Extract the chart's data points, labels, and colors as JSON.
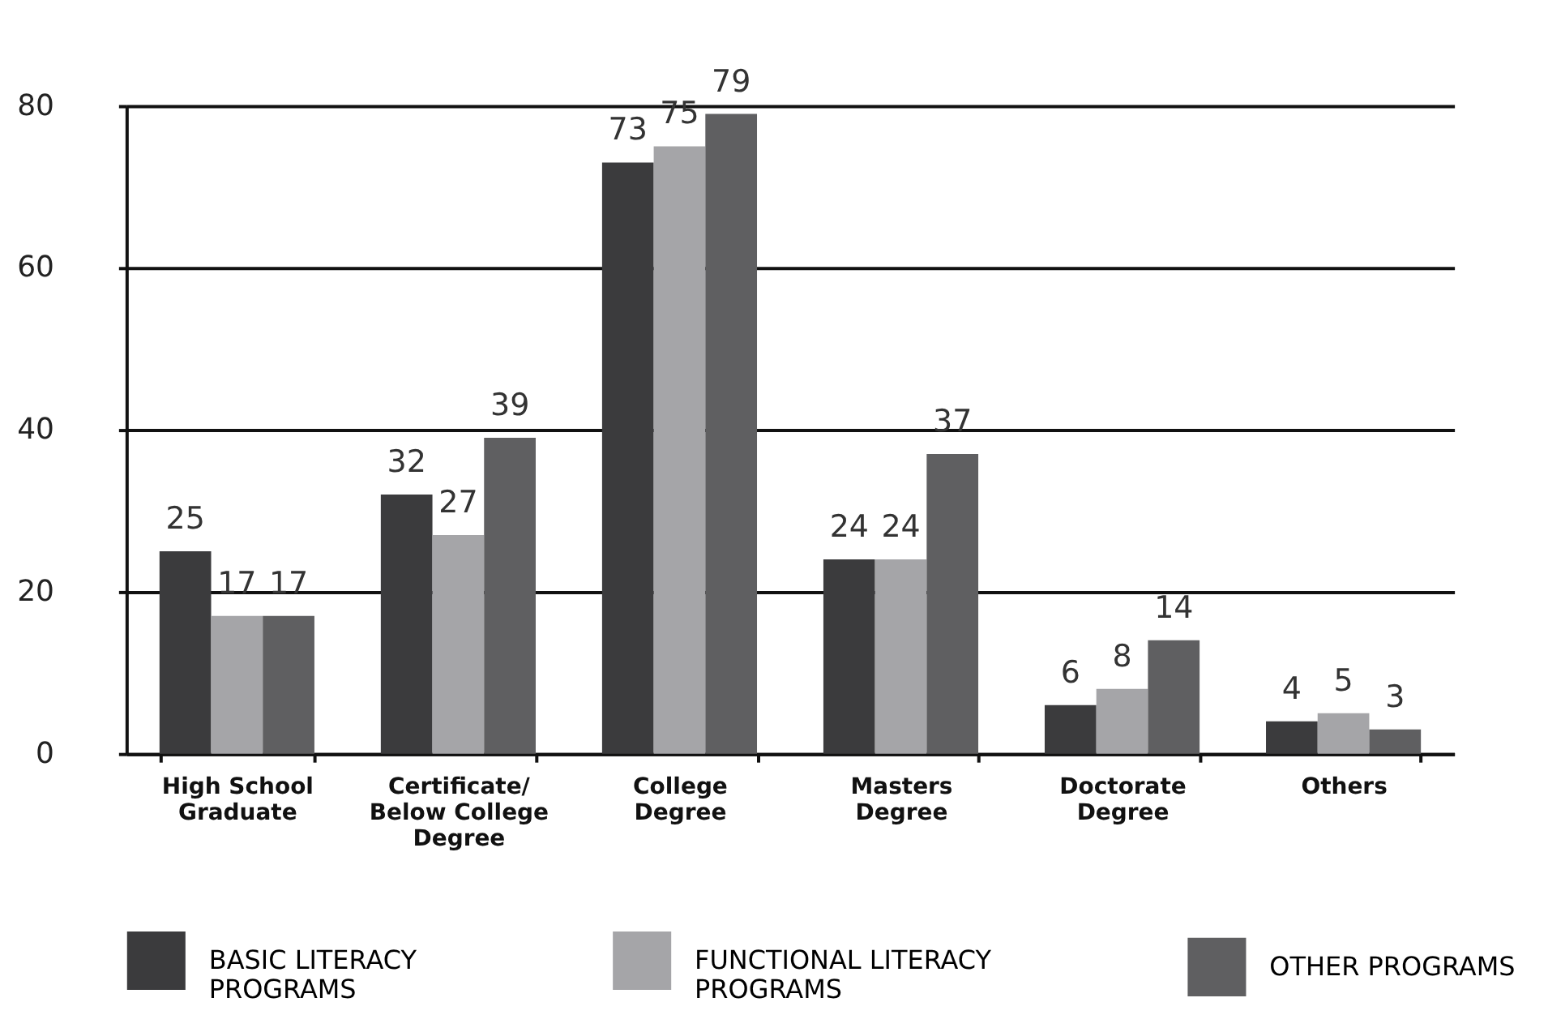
{
  "chart_data": {
    "type": "bar",
    "categories": [
      "High School Graduate",
      "Certificate/ Below College Degree",
      "College Degree",
      "Masters Degree",
      "Doctorate Degree",
      "Others"
    ],
    "series": [
      {
        "name": "BASIC LITERACY PROGRAMS",
        "color": "#3b3b3d",
        "values": [
          25,
          32,
          73,
          24,
          6,
          4
        ]
      },
      {
        "name": "FUNCTIONAL LITERACY PROGRAMS",
        "color": "#a5a5a8",
        "values": [
          17,
          27,
          75,
          24,
          8,
          5
        ]
      },
      {
        "name": "OTHER PROGRAMS",
        "color": "#5f5f61",
        "values": [
          17,
          39,
          79,
          37,
          14,
          3
        ]
      }
    ],
    "ylim": [
      0,
      80
    ],
    "yticks": [
      0,
      20,
      40,
      60,
      80
    ],
    "grid": "y",
    "legend": "bottom",
    "data_labels": true
  }
}
